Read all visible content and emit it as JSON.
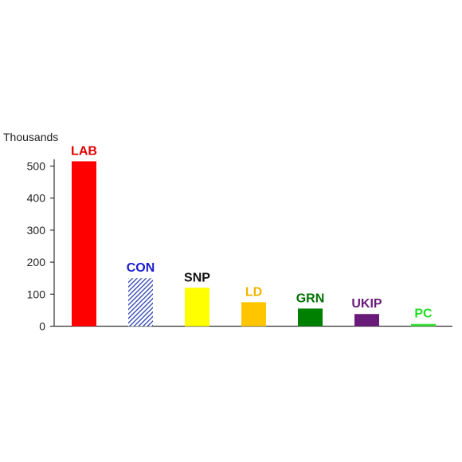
{
  "chart_data": {
    "type": "bar",
    "ylabel": "Thousands",
    "ylim": [
      0,
      550
    ],
    "yticks": [
      0,
      100,
      200,
      300,
      400,
      500
    ],
    "grid": false,
    "legend": "none",
    "categories": [
      "LAB",
      "CON",
      "SNP",
      "LD",
      "GRN",
      "UKIP",
      "PC"
    ],
    "values": [
      515,
      150,
      120,
      75,
      55,
      38,
      7
    ],
    "colors": [
      "#ff0000",
      "#2a3fb0",
      "#ffff00",
      "#ffc600",
      "#008000",
      "#6a1b7a",
      "#33dd33"
    ],
    "label_colors": [
      "#e00000",
      "#1a1ad0",
      "#111111",
      "#f0b400",
      "#007000",
      "#6a1b7a",
      "#22dd22"
    ],
    "patterns": [
      "solid",
      "hatched",
      "solid",
      "solid",
      "solid",
      "solid",
      "solid"
    ]
  }
}
